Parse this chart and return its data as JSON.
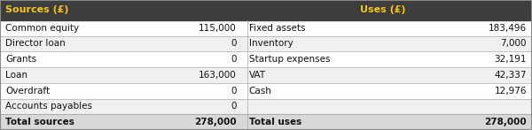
{
  "header_bg": "#3d3d3d",
  "header_text_color": "#f5c518",
  "header_sources": "Sources (£)",
  "header_uses": "Uses (£)",
  "row_bg_odd": "#ffffff",
  "row_bg_even": "#f0f0f0",
  "total_bg": "#d8d8d8",
  "border_color": "#aaaaaa",
  "outer_border_color": "#888888",
  "sources": [
    {
      "label": "Common equity",
      "value": "115,000"
    },
    {
      "label": "Director loan",
      "value": "0"
    },
    {
      "label": "Grants",
      "value": "0"
    },
    {
      "label": "Loan",
      "value": "163,000"
    },
    {
      "label": "Overdraft",
      "value": "0"
    },
    {
      "label": "Accounts payables",
      "value": "0"
    }
  ],
  "uses": [
    {
      "label": "Fixed assets",
      "value": "183,496"
    },
    {
      "label": "Inventory",
      "value": "7,000"
    },
    {
      "label": "Startup expenses",
      "value": "32,191"
    },
    {
      "label": "VAT",
      "value": "42,337"
    },
    {
      "label": "Cash",
      "value": "12,976"
    },
    {
      "label": "",
      "value": ""
    }
  ],
  "total_sources_label": "Total sources",
  "total_sources_value": "278,000",
  "total_uses_label": "Total uses",
  "total_uses_value": "278,000",
  "fig_width": 6.0,
  "fig_height": 1.47,
  "dpi": 100
}
